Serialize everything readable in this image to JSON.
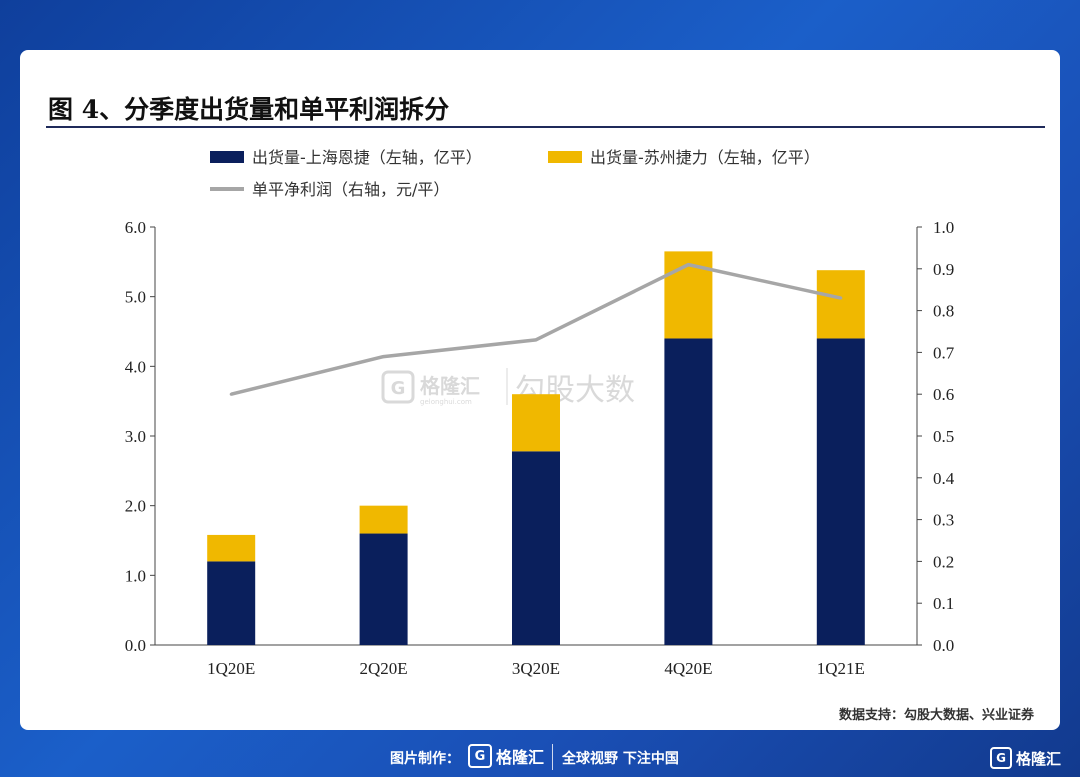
{
  "title": "图 4、分季度出货量和单平利润拆分",
  "source": "数据支持：勾股大数据、兴业证券",
  "watermark": {
    "brand": "格隆汇",
    "brand_sub": "gelonghui.com",
    "tag": "勾股大数"
  },
  "footer": {
    "made_by": "图片制作：",
    "logo_glyph": "G",
    "brand": "格隆汇",
    "slogan": "全球视野 下注中国",
    "corner_brand": "格隆汇"
  },
  "colors": {
    "navy": "#0a1f5c",
    "gold": "#f0b800",
    "gray": "#a6a6a6"
  },
  "chart_data": {
    "type": "bar",
    "stacked": true,
    "categories": [
      "1Q20E",
      "2Q20E",
      "3Q20E",
      "4Q20E",
      "1Q21E"
    ],
    "series": [
      {
        "name": "出货量-上海恩捷（左轴，亿平）",
        "type": "bar",
        "axis": "left",
        "color": "#0a1f5c",
        "values": [
          1.2,
          1.6,
          2.78,
          4.4,
          4.4
        ]
      },
      {
        "name": "出货量-苏州捷力（左轴，亿平）",
        "type": "bar",
        "axis": "left",
        "color": "#f0b800",
        "values": [
          0.38,
          0.4,
          0.82,
          1.25,
          0.98
        ]
      },
      {
        "name": "单平净利润（右轴，元/平）",
        "type": "line",
        "axis": "right",
        "color": "#a6a6a6",
        "values": [
          0.6,
          0.69,
          0.73,
          0.91,
          0.83
        ]
      }
    ],
    "yleft": {
      "min": 0,
      "max": 6,
      "ticks": [
        "0.0",
        "1.0",
        "2.0",
        "3.0",
        "4.0",
        "5.0",
        "6.0"
      ]
    },
    "yright": {
      "min": 0,
      "max": 1,
      "ticks": [
        "0.0",
        "0.1",
        "0.2",
        "0.3",
        "0.4",
        "0.5",
        "0.6",
        "0.7",
        "0.8",
        "0.9",
        "1.0"
      ]
    },
    "legend_position": "top"
  }
}
